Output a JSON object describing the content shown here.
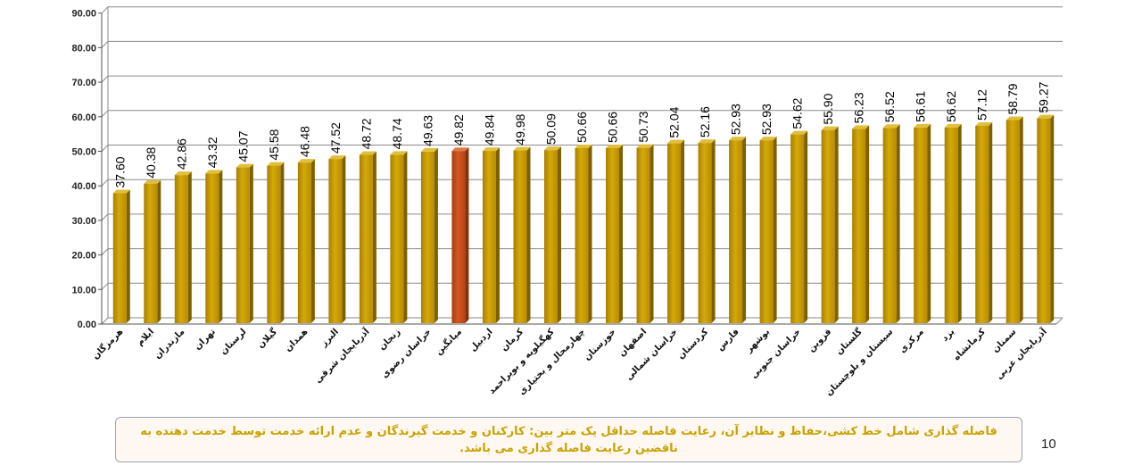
{
  "chart_data": {
    "type": "bar",
    "title": "",
    "xlabel": "",
    "ylabel": "",
    "ylim": [
      0,
      90
    ],
    "yticks": [
      "0.00",
      "10.00",
      "20.00",
      "30.00",
      "40.00",
      "50.00",
      "60.00",
      "70.00",
      "80.00",
      "90.00"
    ],
    "grid": true,
    "categories": [
      "هرمزگان",
      "ایلام",
      "مازندران",
      "تهران",
      "لرستان",
      "گیلان",
      "همدان",
      "البرز",
      "آذربایجان شرقی",
      "زنجان",
      "خراسان رضوی",
      "میانگین",
      "اردبیل",
      "کرمان",
      "کهگیلویه و بویراحمد",
      "چهارمحال و بختیاری",
      "خوزستان",
      "اصفهان",
      "خراسان شمالی",
      "کردستان",
      "فارس",
      "بوشهر",
      "خراسان جنوبی",
      "قزوین",
      "گلستان",
      "سیستان و بلوچستان",
      "مرکزی",
      "یزد",
      "کرمانشاه",
      "سمنان",
      "آذربایجان غربی"
    ],
    "values": [
      37.6,
      40.38,
      42.86,
      43.32,
      45.07,
      45.58,
      46.48,
      47.52,
      48.72,
      48.74,
      49.63,
      49.82,
      49.84,
      49.98,
      50.09,
      50.66,
      50.66,
      50.73,
      52.04,
      52.16,
      52.93,
      52.93,
      54.62,
      55.9,
      56.23,
      56.52,
      56.61,
      56.62,
      57.12,
      58.79,
      59.27
    ],
    "value_labels": [
      "37.60",
      "40.38",
      "42.86",
      "43.32",
      "45.07",
      "45.58",
      "46.48",
      "47.52",
      "48.72",
      "48.74",
      "49.63",
      "49.82",
      "49.84",
      "49.98",
      "50.09",
      "50.66",
      "50.66",
      "50.73",
      "52.04",
      "52.16",
      "52.93",
      "52.93",
      "54.62",
      "55.90",
      "56.23",
      "56.52",
      "56.61",
      "56.62",
      "57.12",
      "58.79",
      "59.27"
    ],
    "highlight_index": 11,
    "colors": {
      "bar": "#c69800",
      "bar_highlight": "#c8501a",
      "grid": "#8a8a8a"
    }
  },
  "note": {
    "text": "فاصله گذاری شامل خط کشی،حفاظ و نظایر آن، رعایت فاصله حداقل یک متر بین: کارکنان  و خدمت گیرندگان و عدم ارائه خدمت توسط خدمت دهنده به ناقضین رعایت فاصله گذاری می باشد."
  },
  "page_number": "10"
}
